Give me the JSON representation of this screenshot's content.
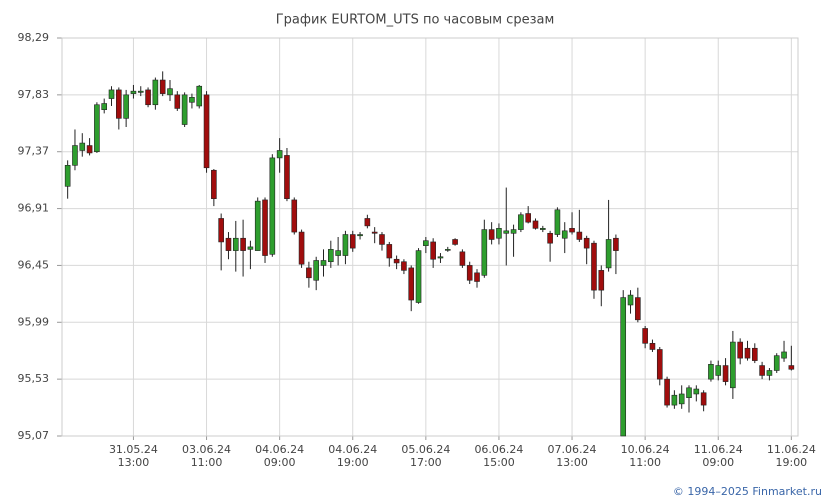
{
  "chart_data": {
    "type": "candlestick",
    "title": "График EURTOM_UTS по часовым срезам",
    "categories": [
      null,
      null,
      null,
      null,
      null,
      null,
      null,
      null,
      null,
      {
        "date": "31.05.24",
        "time": "13:00"
      },
      null,
      null,
      null,
      null,
      null,
      null,
      null,
      null,
      null,
      {
        "date": "03.06.24",
        "time": "11:00"
      },
      null,
      null,
      null,
      null,
      null,
      null,
      null,
      null,
      null,
      {
        "date": "04.06.24",
        "time": "09:00"
      },
      null,
      null,
      null,
      null,
      null,
      null,
      null,
      null,
      null,
      {
        "date": "04.06.24",
        "time": "19:00"
      },
      null,
      null,
      null,
      null,
      null,
      null,
      null,
      null,
      null,
      {
        "date": "05.06.24",
        "time": "17:00"
      },
      null,
      null,
      null,
      null,
      null,
      null,
      null,
      null,
      null,
      {
        "date": "06.06.24",
        "time": "15:00"
      },
      null,
      null,
      null,
      null,
      null,
      null,
      null,
      null,
      null,
      {
        "date": "07.06.24",
        "time": "13:00"
      },
      null,
      null,
      null,
      null,
      null,
      null,
      null,
      null,
      null,
      {
        "date": "10.06.24",
        "time": "11:00"
      },
      null,
      null,
      null,
      null,
      null,
      null,
      null,
      null,
      null,
      {
        "date": "11.06.24",
        "time": "09:00"
      },
      null,
      null,
      null,
      null,
      null,
      null,
      null,
      null,
      null,
      {
        "date": "11.06.24",
        "time": "19:00"
      }
    ],
    "open": [
      97.09,
      97.26,
      97.38,
      97.42,
      97.37,
      97.71,
      97.8,
      97.87,
      97.64,
      97.84,
      97.85,
      97.87,
      97.75,
      97.95,
      97.83,
      97.83,
      97.59,
      97.77,
      97.74,
      97.83,
      97.22,
      96.83,
      96.67,
      96.57,
      96.67,
      96.58,
      96.57,
      96.98,
      96.54,
      97.32,
      97.34,
      96.98,
      96.72,
      96.43,
      96.33,
      96.45,
      96.48,
      96.53,
      96.53,
      96.7,
      96.69,
      96.83,
      96.72,
      96.7,
      96.62,
      96.5,
      96.48,
      96.43,
      96.15,
      96.61,
      96.64,
      96.51,
      96.58,
      96.66,
      96.56,
      96.45,
      96.39,
      96.37,
      96.74,
      96.67,
      96.71,
      96.71,
      96.74,
      96.87,
      96.81,
      96.74,
      96.71,
      96.7,
      96.67,
      96.75,
      96.72,
      96.67,
      96.63,
      96.41,
      96.43,
      96.67,
      95.07,
      96.13,
      96.19,
      95.94,
      95.82,
      95.77,
      95.53,
      95.32,
      95.33,
      95.38,
      95.41,
      95.42,
      95.53,
      95.56,
      95.64,
      95.46,
      95.83,
      95.78,
      95.78,
      95.64,
      95.56,
      95.6,
      95.7,
      95.64
    ],
    "high": [
      97.3,
      97.55,
      97.52,
      97.48,
      97.77,
      97.8,
      97.9,
      97.89,
      97.87,
      97.91,
      97.9,
      97.89,
      97.97,
      98.02,
      97.95,
      97.86,
      97.85,
      97.84,
      97.91,
      97.86,
      97.23,
      96.87,
      96.72,
      96.81,
      96.82,
      96.65,
      97.0,
      97.0,
      97.35,
      97.48,
      97.4,
      97.0,
      96.74,
      96.48,
      96.52,
      96.58,
      96.65,
      96.68,
      96.73,
      96.73,
      96.72,
      96.86,
      96.76,
      96.72,
      96.64,
      96.53,
      96.5,
      96.45,
      96.59,
      96.68,
      96.67,
      96.55,
      96.6,
      96.67,
      96.58,
      96.48,
      96.42,
      96.82,
      96.8,
      96.79,
      97.08,
      96.78,
      96.88,
      96.93,
      96.83,
      96.77,
      96.73,
      96.92,
      96.8,
      96.88,
      96.9,
      96.69,
      96.65,
      96.45,
      96.98,
      96.7,
      96.25,
      96.25,
      96.27,
      95.96,
      95.85,
      95.79,
      95.55,
      95.44,
      95.48,
      95.48,
      95.48,
      95.44,
      95.68,
      95.68,
      95.7,
      95.92,
      95.86,
      95.84,
      95.82,
      95.67,
      95.62,
      95.74,
      95.84,
      95.8
    ],
    "low": [
      96.99,
      97.22,
      97.33,
      97.34,
      97.36,
      97.68,
      97.74,
      97.55,
      97.57,
      97.8,
      97.82,
      97.73,
      97.71,
      97.82,
      97.78,
      97.7,
      97.57,
      97.72,
      97.72,
      97.2,
      96.93,
      96.41,
      96.5,
      96.4,
      96.36,
      96.42,
      96.57,
      96.47,
      96.52,
      97.2,
      96.97,
      96.7,
      96.43,
      96.27,
      96.25,
      96.36,
      96.43,
      96.45,
      96.46,
      96.56,
      96.66,
      96.75,
      96.63,
      96.57,
      96.44,
      96.42,
      96.38,
      96.08,
      96.14,
      96.55,
      96.43,
      96.47,
      96.56,
      96.61,
      96.43,
      96.3,
      96.27,
      96.35,
      96.62,
      96.62,
      96.45,
      96.52,
      96.72,
      96.79,
      96.74,
      96.72,
      96.48,
      96.68,
      96.55,
      96.7,
      96.64,
      96.46,
      96.18,
      96.12,
      96.4,
      96.38,
      95.07,
      96.06,
      95.99,
      95.78,
      95.75,
      95.48,
      95.3,
      95.29,
      95.29,
      95.26,
      95.35,
      95.27,
      95.51,
      95.52,
      95.48,
      95.37,
      95.65,
      95.68,
      95.66,
      95.53,
      95.52,
      95.58,
      95.67,
      95.6
    ],
    "close": [
      97.26,
      97.42,
      97.44,
      97.36,
      97.75,
      97.76,
      97.87,
      97.64,
      97.83,
      97.86,
      97.86,
      97.75,
      97.95,
      97.84,
      97.88,
      97.72,
      97.83,
      97.81,
      97.9,
      97.24,
      96.99,
      96.64,
      96.57,
      96.67,
      96.57,
      96.6,
      96.97,
      96.53,
      97.32,
      97.38,
      96.99,
      96.72,
      96.46,
      96.35,
      96.49,
      96.49,
      96.58,
      96.57,
      96.7,
      96.59,
      96.7,
      96.77,
      96.71,
      96.62,
      96.51,
      96.47,
      96.41,
      96.17,
      96.57,
      96.65,
      96.5,
      96.52,
      96.58,
      96.62,
      96.45,
      96.33,
      96.32,
      96.74,
      96.66,
      96.75,
      96.73,
      96.74,
      96.86,
      96.8,
      96.75,
      96.75,
      96.63,
      96.9,
      96.73,
      96.72,
      96.66,
      96.59,
      96.25,
      96.25,
      96.66,
      96.57,
      96.19,
      96.21,
      96.01,
      95.82,
      95.77,
      95.53,
      95.32,
      95.4,
      95.41,
      95.46,
      95.45,
      95.32,
      95.65,
      95.64,
      95.51,
      95.83,
      95.7,
      95.7,
      95.68,
      95.56,
      95.6,
      95.72,
      95.75,
      95.61
    ],
    "up_color": "#2e9e2e",
    "down_color": "#a00d0d",
    "ylim": [
      95.07,
      98.29
    ],
    "yticks": [
      {
        "value": 95.07,
        "label": "95,07"
      },
      {
        "value": 95.53,
        "label": "95,53"
      },
      {
        "value": 95.99,
        "label": "95,99"
      },
      {
        "value": 96.45,
        "label": "96,45"
      },
      {
        "value": 96.91,
        "label": "96,91"
      },
      {
        "value": 97.37,
        "label": "97,37"
      },
      {
        "value": 97.83,
        "label": "97,83"
      },
      {
        "value": 98.29,
        "label": "98,29"
      }
    ],
    "grid": true
  },
  "credit": "© 1994–2025 Finmarket.ru"
}
